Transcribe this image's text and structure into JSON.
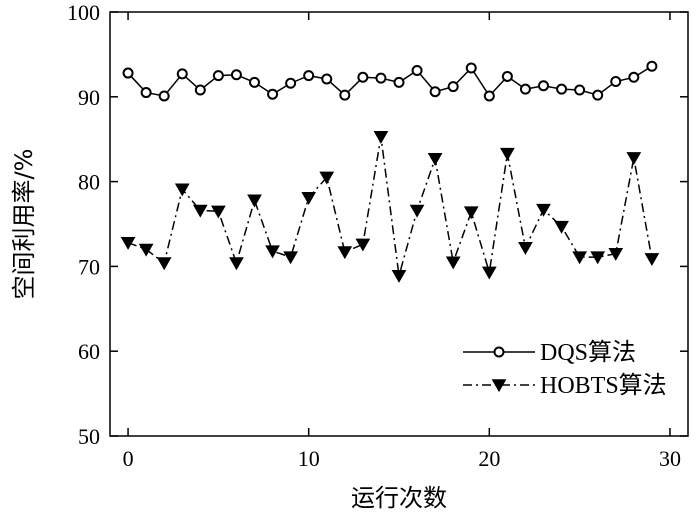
{
  "chart_data": {
    "type": "line",
    "xlabel": "运行次数",
    "ylabel": "空间利用率/%",
    "xlim": [
      -1,
      31
    ],
    "ylim": [
      50,
      100
    ],
    "xticks": [
      0,
      10,
      20,
      30
    ],
    "yticks": [
      50,
      60,
      70,
      80,
      90,
      100
    ],
    "legend_position": "bottom-right",
    "grid": false,
    "x": [
      0,
      1,
      2,
      3,
      4,
      5,
      6,
      7,
      8,
      9,
      10,
      11,
      12,
      13,
      14,
      15,
      16,
      17,
      18,
      19,
      20,
      21,
      22,
      23,
      24,
      25,
      26,
      27,
      28,
      29
    ],
    "series": [
      {
        "name": "DQS算法",
        "marker": "circle",
        "line_style": "solid",
        "values": [
          92.8,
          90.5,
          90.1,
          92.7,
          90.8,
          92.5,
          92.6,
          91.7,
          90.3,
          91.6,
          92.5,
          92.1,
          90.2,
          92.3,
          92.2,
          91.7,
          93.1,
          90.6,
          91.2,
          93.4,
          90.1,
          92.4,
          90.9,
          91.3,
          90.9,
          90.8,
          90.2,
          91.8,
          92.3,
          93.6
        ]
      },
      {
        "name": "HOBTS算法",
        "marker": "triangle-down",
        "line_style": "dashdot",
        "values": [
          72.8,
          72.0,
          70.4,
          79.1,
          76.6,
          76.5,
          70.4,
          77.8,
          71.8,
          71.1,
          78.1,
          80.5,
          71.7,
          72.6,
          85.3,
          68.9,
          76.6,
          82.7,
          70.5,
          76.4,
          69.3,
          83.3,
          72.2,
          76.7,
          74.7,
          71.1,
          71.1,
          71.5,
          82.8,
          70.9
        ]
      }
    ]
  }
}
